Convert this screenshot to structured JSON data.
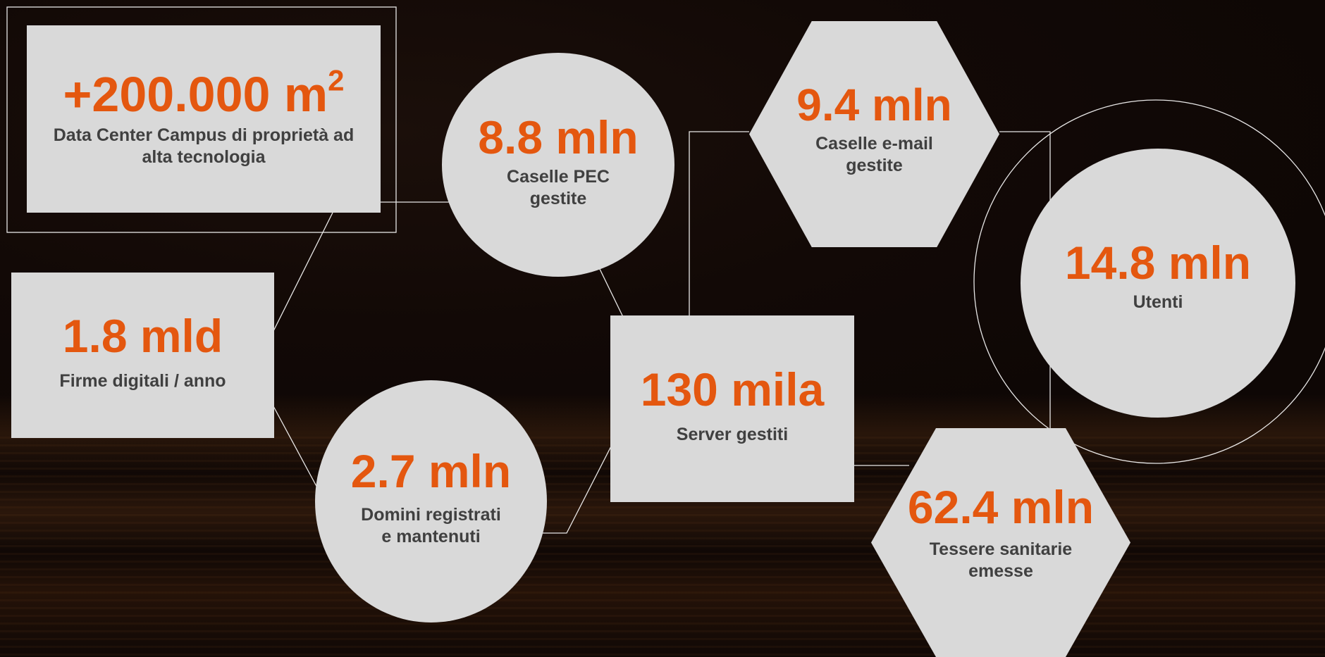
{
  "stats": {
    "datacenter": {
      "value": "+200.000 m",
      "sup": "2",
      "label_line1": "Data Center Campus di proprietà ad",
      "label_line2": "alta tecnologia"
    },
    "pec": {
      "value": "8.8 mln",
      "label_line1": "Caselle PEC",
      "label_line2": "gestite"
    },
    "email": {
      "value": "9.4 mln",
      "label_line1": "Caselle e-mail",
      "label_line2": "gestite"
    },
    "utenti": {
      "value": "14.8 mln",
      "label_line1": "Utenti"
    },
    "firme": {
      "value": "1.8 mld",
      "label_line1": "Firme digitali / anno"
    },
    "server": {
      "value": "130 mila",
      "label_line1": "Server gestiti"
    },
    "domini": {
      "value": "2.7 mln",
      "label_line1": "Domini registrati",
      "label_line2": "e mantenuti"
    },
    "tessere": {
      "value": "62.4 mln",
      "label_line1": "Tessere sanitarie",
      "label_line2": "emesse"
    }
  },
  "colors": {
    "accent": "#e4570f",
    "shape_fill": "#d9d9d9",
    "label_text": "#404040",
    "connector": "#ffffff"
  }
}
